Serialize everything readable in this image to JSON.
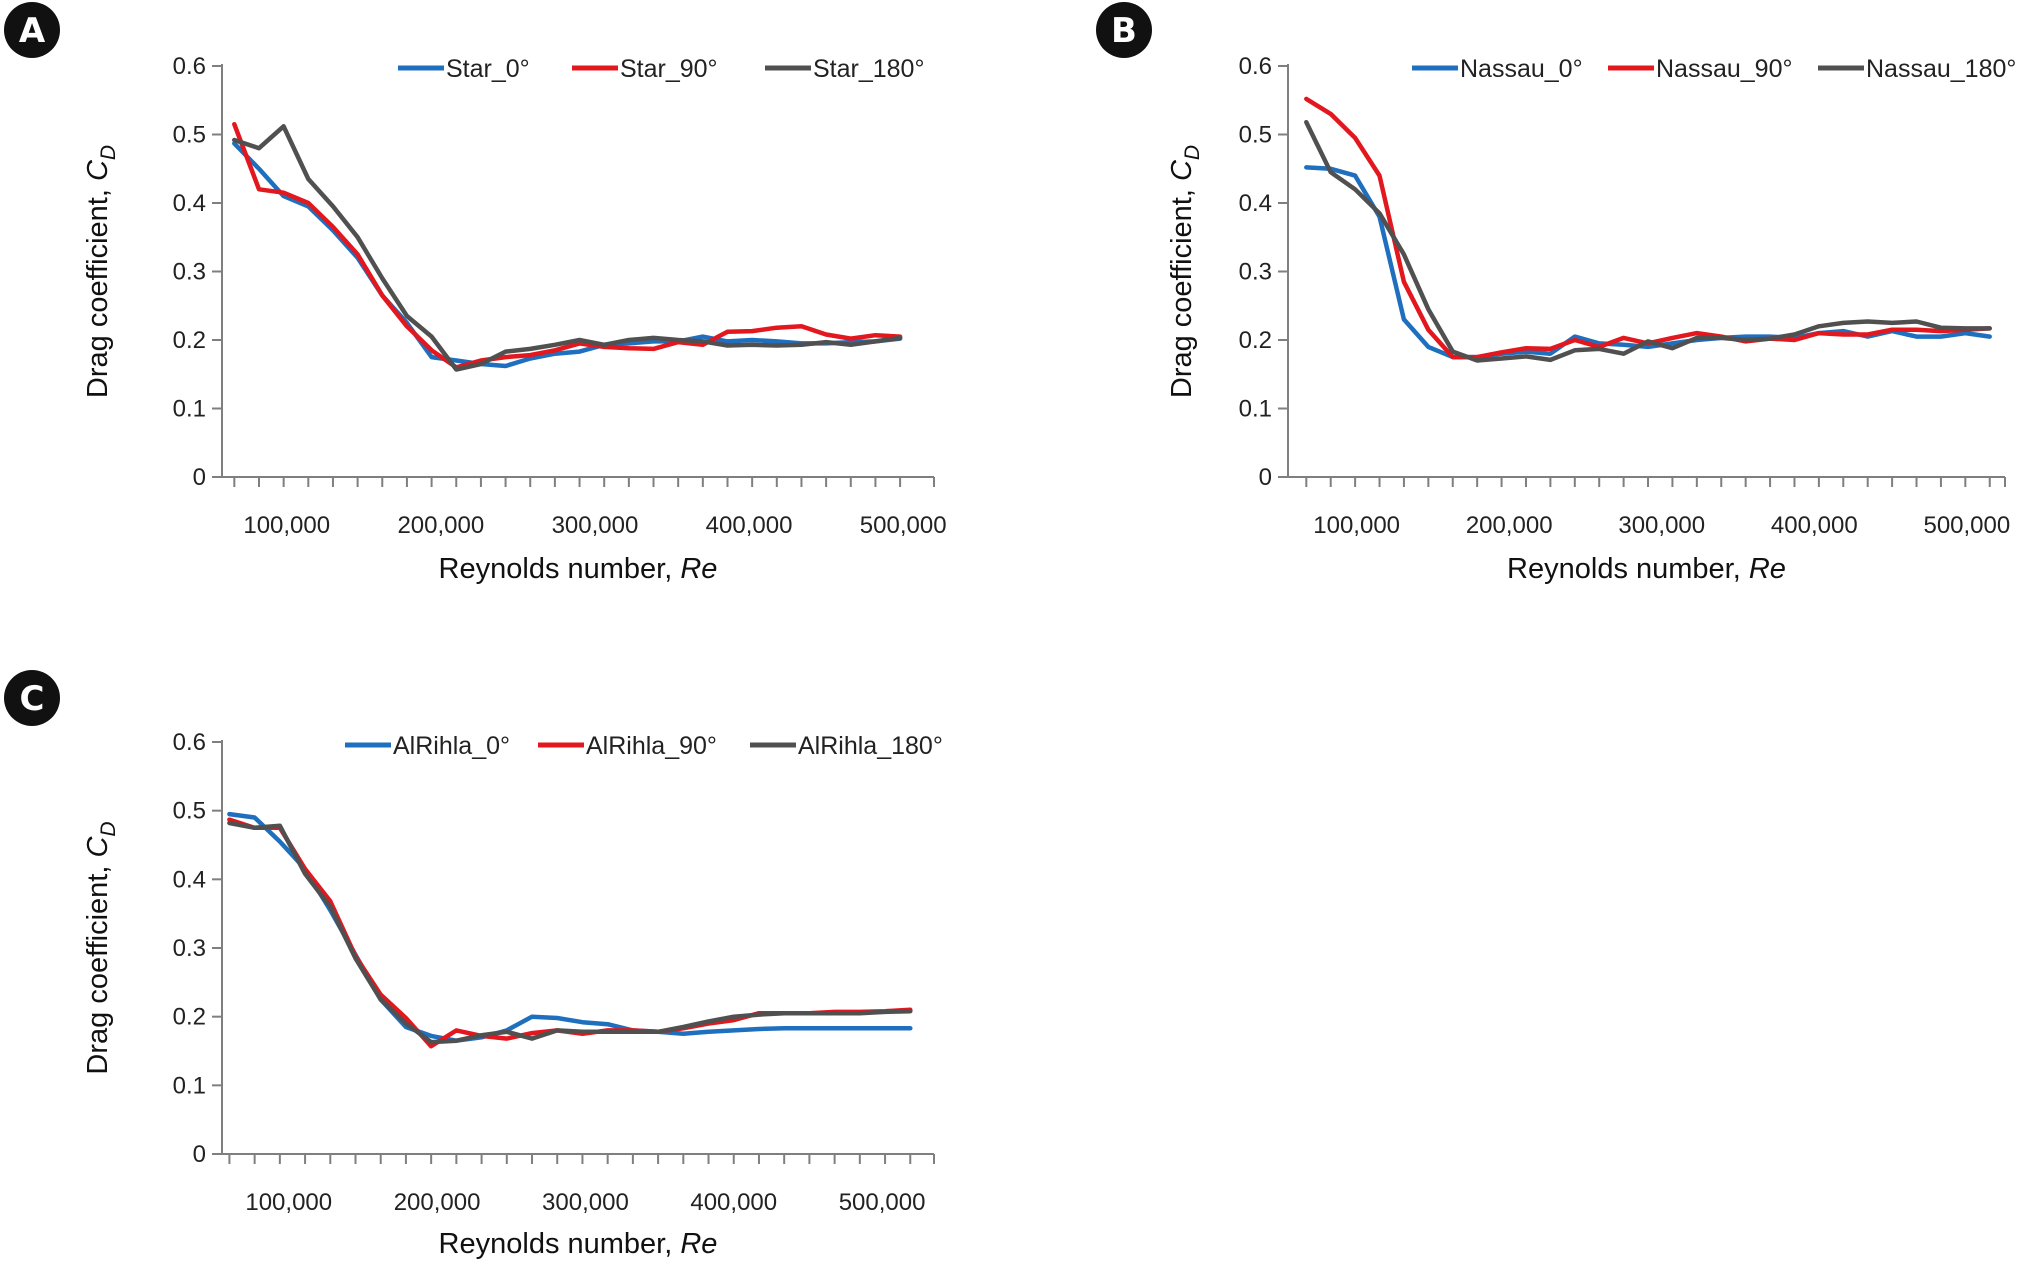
{
  "chart_data": [
    {
      "panel": "A",
      "type": "line",
      "xlabel": "Reynolds number, ",
      "xlabel_italic": "Re",
      "ylabel": "Drag coefficient, ",
      "ylabel_italic": "C",
      "ylabel_sub": "D",
      "ylim": [
        0,
        0.6
      ],
      "yticks": [
        "0",
        "0.1",
        "0.2",
        "0.3",
        "0.4",
        "0.5",
        "0.6"
      ],
      "xticks": [
        {
          "value": 100000,
          "label": "100,000"
        },
        {
          "value": 200000,
          "label": "200,000"
        },
        {
          "value": 300000,
          "label": "300,000"
        },
        {
          "value": 400000,
          "label": "400,000"
        },
        {
          "value": 500000,
          "label": "500,000"
        }
      ],
      "xlim": [
        58000,
        520000
      ],
      "grid": false,
      "legend_position": "top-right",
      "x": [
        66000,
        82000,
        98000,
        114000,
        130000,
        146000,
        162000,
        178000,
        194000,
        210000,
        226000,
        242000,
        258000,
        274000,
        290000,
        306000,
        322000,
        338000,
        354000,
        370000,
        386000,
        402000,
        418000,
        434000,
        450000,
        466000,
        482000,
        498000
      ],
      "series": [
        {
          "name": "Star_0°",
          "color": "#1f6fbf",
          "values": [
            0.487,
            0.45,
            0.41,
            0.395,
            0.36,
            0.32,
            0.265,
            0.225,
            0.175,
            0.17,
            0.165,
            0.162,
            0.173,
            0.18,
            0.183,
            0.193,
            0.195,
            0.198,
            0.198,
            0.205,
            0.198,
            0.2,
            0.198,
            0.195,
            0.195,
            0.197,
            0.198,
            0.202
          ]
        },
        {
          "name": "Star_90°",
          "color": "#e3171e",
          "values": [
            0.515,
            0.42,
            0.415,
            0.4,
            0.365,
            0.325,
            0.265,
            0.22,
            0.185,
            0.16,
            0.17,
            0.175,
            0.178,
            0.185,
            0.195,
            0.19,
            0.188,
            0.187,
            0.197,
            0.193,
            0.212,
            0.213,
            0.218,
            0.22,
            0.208,
            0.202,
            0.207,
            0.205
          ]
        },
        {
          "name": "Star_180°",
          "color": "#505050",
          "values": [
            0.492,
            0.48,
            0.512,
            0.435,
            0.395,
            0.35,
            0.29,
            0.235,
            0.205,
            0.157,
            0.165,
            0.183,
            0.187,
            0.193,
            0.2,
            0.193,
            0.2,
            0.203,
            0.2,
            0.198,
            0.192,
            0.193,
            0.192,
            0.193,
            0.197,
            0.193,
            0.198,
            0.203
          ]
        }
      ]
    },
    {
      "panel": "B",
      "type": "line",
      "xlabel": "Reynolds number, ",
      "xlabel_italic": "Re",
      "ylabel": "Drag coefficient, ",
      "ylabel_italic": "C",
      "ylabel_sub": "D",
      "ylim": [
        0,
        0.6
      ],
      "yticks": [
        "0",
        "0.1",
        "0.2",
        "0.3",
        "0.4",
        "0.5",
        "0.6"
      ],
      "xticks": [
        {
          "value": 100000,
          "label": "100,000"
        },
        {
          "value": 200000,
          "label": "200,000"
        },
        {
          "value": 300000,
          "label": "300,000"
        },
        {
          "value": 400000,
          "label": "400,000"
        },
        {
          "value": 500000,
          "label": "500,000"
        }
      ],
      "xlim": [
        55000,
        525000
      ],
      "grid": false,
      "legend_position": "top-right",
      "x": [
        67000,
        83000,
        99000,
        115000,
        131000,
        147000,
        163000,
        179000,
        195000,
        211000,
        227000,
        243000,
        259000,
        275000,
        291000,
        307000,
        323000,
        339000,
        355000,
        371000,
        387000,
        403000,
        419000,
        435000,
        451000,
        467000,
        483000,
        499000,
        515000
      ],
      "series": [
        {
          "name": "Nassau_0°",
          "color": "#1f6fbf",
          "values": [
            0.452,
            0.45,
            0.44,
            0.38,
            0.23,
            0.19,
            0.175,
            0.175,
            0.18,
            0.183,
            0.18,
            0.205,
            0.195,
            0.193,
            0.19,
            0.195,
            0.2,
            0.203,
            0.205,
            0.205,
            0.203,
            0.21,
            0.213,
            0.205,
            0.213,
            0.205,
            0.205,
            0.21,
            0.205
          ]
        },
        {
          "name": "Nassau_90°",
          "color": "#e3171e",
          "values": [
            0.552,
            0.53,
            0.495,
            0.44,
            0.285,
            0.215,
            0.175,
            0.175,
            0.182,
            0.188,
            0.187,
            0.2,
            0.19,
            0.203,
            0.195,
            0.203,
            0.21,
            0.205,
            0.198,
            0.202,
            0.2,
            0.21,
            0.208,
            0.208,
            0.215,
            0.215,
            0.213,
            0.215,
            0.217
          ]
        },
        {
          "name": "Nassau_180°",
          "color": "#505050",
          "values": [
            0.518,
            0.445,
            0.42,
            0.385,
            0.325,
            0.245,
            0.183,
            0.17,
            0.173,
            0.176,
            0.171,
            0.185,
            0.187,
            0.18,
            0.198,
            0.188,
            0.203,
            0.203,
            0.2,
            0.202,
            0.208,
            0.22,
            0.225,
            0.227,
            0.225,
            0.227,
            0.218,
            0.217,
            0.217
          ]
        }
      ]
    },
    {
      "panel": "C",
      "type": "line",
      "xlabel": "Reynolds number, ",
      "xlabel_italic": "Re",
      "ylabel": "Drag coefficient, ",
      "ylabel_italic": "C",
      "ylabel_sub": "D",
      "ylim": [
        0,
        0.6
      ],
      "yticks": [
        "0",
        "0.1",
        "0.2",
        "0.3",
        "0.4",
        "0.5",
        "0.6"
      ],
      "xticks": [
        {
          "value": 100000,
          "label": "100,000"
        },
        {
          "value": 200000,
          "label": "200,000"
        },
        {
          "value": 300000,
          "label": "300,000"
        },
        {
          "value": 400000,
          "label": "400,000"
        },
        {
          "value": 500000,
          "label": "500,000"
        }
      ],
      "xlim": [
        55000,
        535000
      ],
      "grid": false,
      "legend_position": "top-right",
      "x": [
        60000,
        77000,
        94000,
        111000,
        128000,
        145000,
        162000,
        179000,
        196000,
        213000,
        230000,
        247000,
        264000,
        281000,
        298000,
        315000,
        332000,
        349000,
        366000,
        383000,
        400000,
        417000,
        434000,
        451000,
        468000,
        485000,
        502000,
        519000
      ],
      "series": [
        {
          "name": "AlRihla_0°",
          "color": "#1f6fbf",
          "values": [
            0.495,
            0.49,
            0.455,
            0.415,
            0.355,
            0.29,
            0.225,
            0.185,
            0.172,
            0.165,
            0.17,
            0.18,
            0.2,
            0.198,
            0.192,
            0.189,
            0.18,
            0.178,
            0.175,
            0.178,
            0.18,
            0.182,
            0.183,
            0.183,
            0.183,
            0.183,
            0.183,
            0.183
          ]
        },
        {
          "name": "AlRihla_90°",
          "color": "#e3171e",
          "values": [
            0.487,
            0.475,
            0.475,
            0.415,
            0.368,
            0.288,
            0.232,
            0.198,
            0.157,
            0.18,
            0.172,
            0.168,
            0.176,
            0.18,
            0.175,
            0.18,
            0.18,
            0.178,
            0.183,
            0.19,
            0.195,
            0.205,
            0.205,
            0.205,
            0.207,
            0.207,
            0.208,
            0.21
          ]
        },
        {
          "name": "AlRihla_180°",
          "color": "#505050",
          "values": [
            0.482,
            0.475,
            0.478,
            0.408,
            0.36,
            0.285,
            0.225,
            0.19,
            0.163,
            0.165,
            0.173,
            0.178,
            0.168,
            0.18,
            0.178,
            0.178,
            0.178,
            0.178,
            0.185,
            0.193,
            0.2,
            0.203,
            0.205,
            0.205,
            0.205,
            0.205,
            0.207,
            0.208
          ]
        }
      ]
    }
  ]
}
